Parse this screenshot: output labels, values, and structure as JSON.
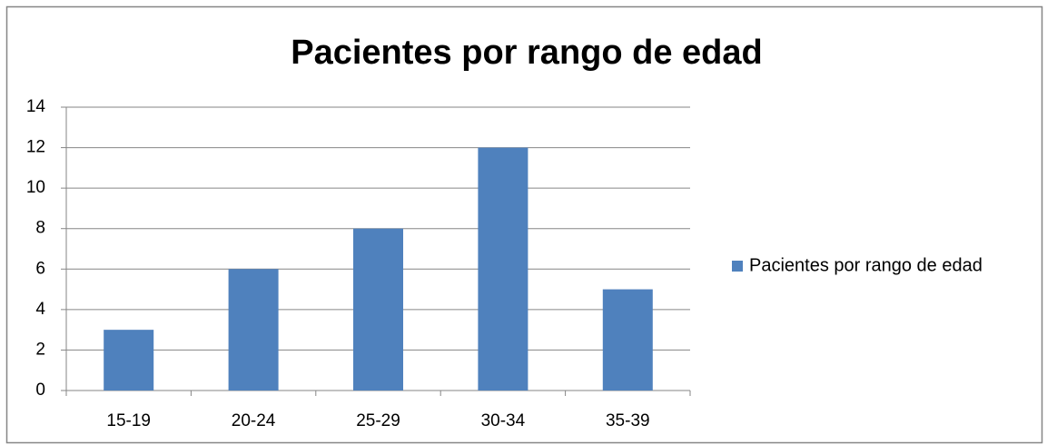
{
  "chart_data": {
    "type": "bar",
    "title": "Pacientes por rango de edad",
    "categories": [
      "15-19",
      "20-24",
      "25-29",
      "30-34",
      "35-39"
    ],
    "series": [
      {
        "name": "Pacientes por rango de edad",
        "color": "#4f81bd",
        "values": [
          3,
          6,
          8,
          12,
          5
        ]
      }
    ],
    "ylim": [
      0,
      14
    ],
    "yticks": [
      0,
      2,
      4,
      6,
      8,
      10,
      12,
      14
    ],
    "grid": true,
    "legend": "right"
  }
}
